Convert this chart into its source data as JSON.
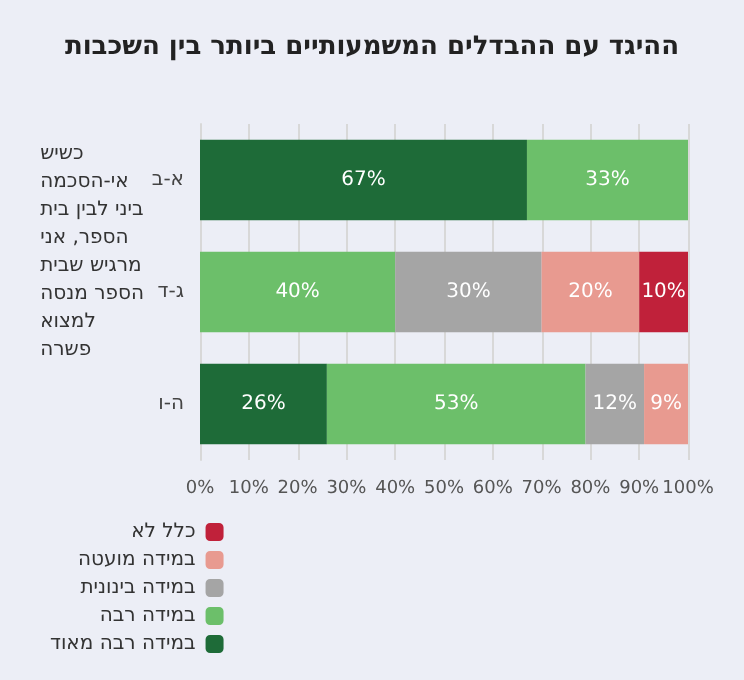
{
  "chart_data": {
    "type": "bar",
    "orientation": "horizontal",
    "stacked": true,
    "title": "ההיגד עם ההבדלים המשמעותיים ביותר בין השכבות",
    "ylabel": "כשיש אי-הסכמה ביני לבין בית הספר, אני מרגיש שבית הספר מנסה למצוא פשרה",
    "categories": [
      "א-ב",
      "ג-ד",
      "ה-ו"
    ],
    "series": [
      {
        "name": "במידה רבה מאוד",
        "color": "#1e6b38",
        "values": [
          67,
          null,
          26
        ],
        "value_labels": [
          "67%",
          null,
          "26%"
        ]
      },
      {
        "name": "במידה רבה",
        "color": "#6cbf6a",
        "values": [
          33,
          40,
          53
        ],
        "value_labels": [
          "33%",
          "40%",
          "53%"
        ]
      },
      {
        "name": "במידה בינונית",
        "color": "#a5a5a5",
        "values": [
          null,
          30,
          12
        ],
        "value_labels": [
          null,
          "30%",
          "12%"
        ]
      },
      {
        "name": "במידה מועטה",
        "color": "#e89a90",
        "values": [
          null,
          20,
          9
        ],
        "value_labels": [
          null,
          "20%",
          "9%"
        ]
      },
      {
        "name": "כלל לא",
        "color": "#c0213a",
        "values": [
          null,
          10,
          null
        ],
        "value_labels": [
          null,
          "10%",
          null
        ]
      }
    ],
    "xlim": [
      0,
      100
    ],
    "xticks": [
      {
        "value": 0,
        "label": "0%"
      },
      {
        "value": 10,
        "label": "10%"
      },
      {
        "value": 20,
        "label": "20%"
      },
      {
        "value": 30,
        "label": "30%"
      },
      {
        "value": 40,
        "label": "40%"
      },
      {
        "value": 50,
        "label": "50%"
      },
      {
        "value": 60,
        "label": "60%"
      },
      {
        "value": 70,
        "label": "70%"
      },
      {
        "value": 80,
        "label": "80%"
      },
      {
        "value": 90,
        "label": "90%"
      },
      {
        "value": 100,
        "label": "100%"
      }
    ],
    "grid": "x",
    "legend": "bottom left"
  }
}
